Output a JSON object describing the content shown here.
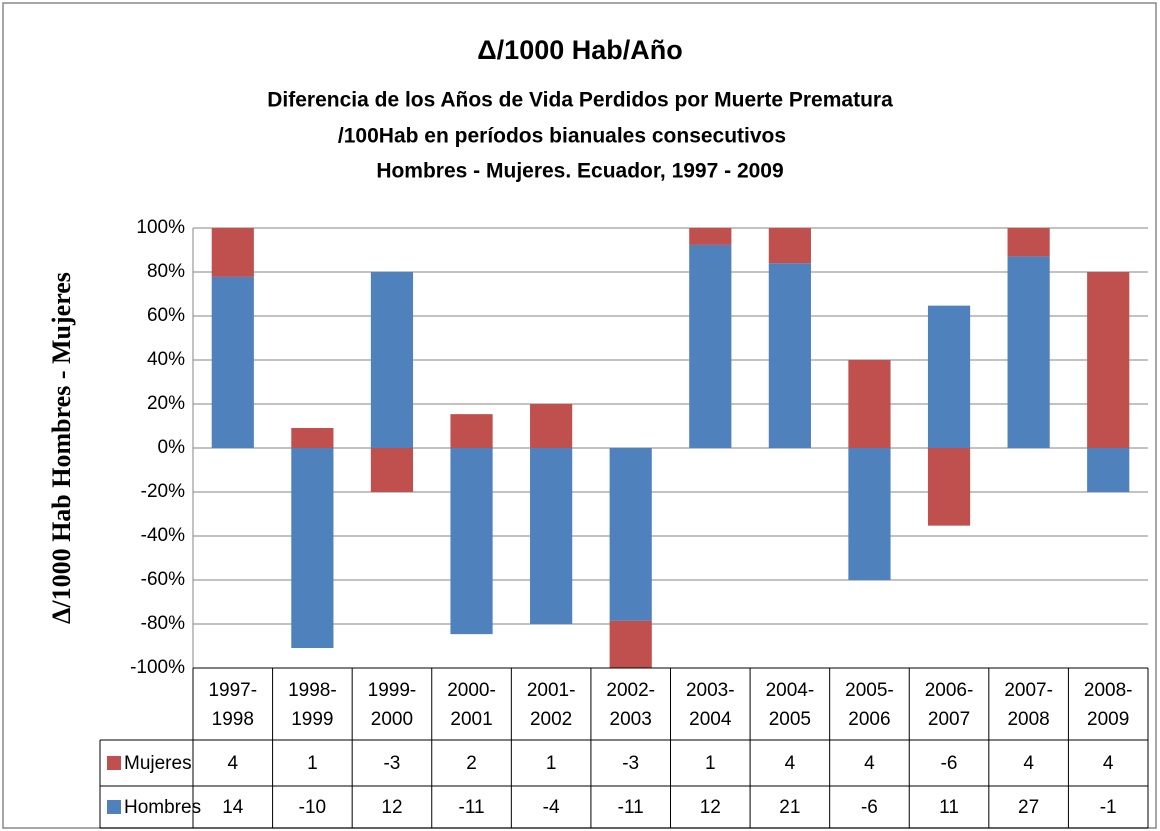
{
  "chart_data": {
    "type": "stacked_percent_bar",
    "title": "Δ/1000 Hab/Año",
    "subtitle": [
      "Diferencia de los Años de Vida Perdidos por Muerte Prematura",
      "/100Hab  en períodos bianuales consecutivos",
      "Hombres - Mujeres. Ecuador, 1997 - 2009"
    ],
    "y_label": "Δ/1000 Hab Hombres - Mujeres",
    "categories": [
      "1997-1998",
      "1998-1999",
      "1999-2000",
      "2000-2001",
      "2001-2002",
      "2002-2003",
      "2003-2004",
      "2004-2005",
      "2005-2006",
      "2006-2007",
      "2007-2008",
      "2008-2009"
    ],
    "series": [
      {
        "name": "Hombres",
        "color": "#4f81bd",
        "values": [
          14,
          -10,
          12,
          -11,
          -4,
          -11,
          12,
          21,
          -6,
          11,
          27,
          -1
        ]
      },
      {
        "name": "Mujeres",
        "color": "#c0504d",
        "values": [
          4,
          1,
          -3,
          2,
          1,
          -3,
          1,
          4,
          4,
          -6,
          4,
          4
        ]
      }
    ],
    "ylim": [
      -100,
      100
    ],
    "yticks": [
      {
        "value": -100,
        "label": "-100%"
      },
      {
        "value": -80,
        "label": "-80%"
      },
      {
        "value": -60,
        "label": "-60%"
      },
      {
        "value": -40,
        "label": "-40%"
      },
      {
        "value": -20,
        "label": "-20%"
      },
      {
        "value": 0,
        "label": "0%"
      },
      {
        "value": 20,
        "label": "20%"
      },
      {
        "value": 40,
        "label": "40%"
      },
      {
        "value": 60,
        "label": "60%"
      },
      {
        "value": 80,
        "label": "80%"
      },
      {
        "value": 100,
        "label": "100%"
      }
    ],
    "grid": true,
    "data_table": true
  }
}
